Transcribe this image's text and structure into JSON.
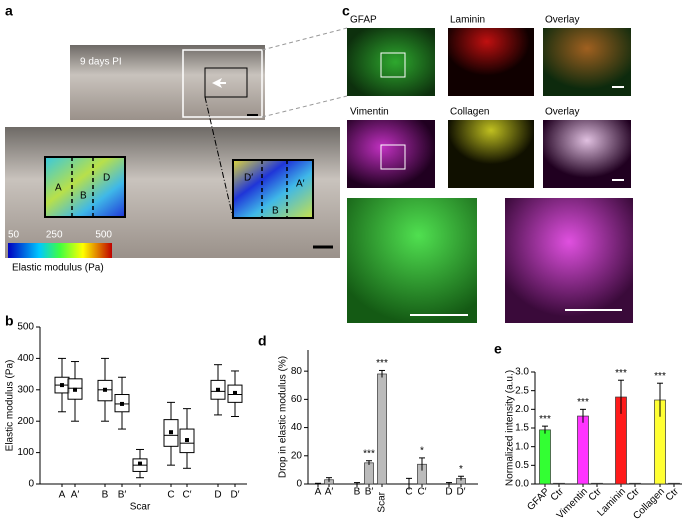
{
  "panel_labels": [
    "a",
    "b",
    "c",
    "d",
    "e"
  ],
  "panel_a": {
    "inset_label": "9 days PI",
    "region_labels": [
      "A",
      "B",
      "D",
      "D′",
      "B",
      "A′"
    ],
    "colorbar": {
      "clim": [
        50,
        500
      ],
      "ticks": [
        50,
        250,
        500
      ],
      "label": "Elastic modulus (Pa)"
    }
  },
  "panel_c": {
    "labels": [
      "GFAP",
      "Laminin",
      "Overlay",
      "Vimentin",
      "Collagen",
      "Overlay"
    ]
  },
  "chart_data": [
    {
      "type": "box",
      "y_label": "Elastic modulus (Pa)",
      "categories": [
        "A",
        "A′",
        "B",
        "B′",
        "Scar",
        "C",
        "C′",
        "D",
        "D′"
      ],
      "whisker_low": [
        230,
        200,
        200,
        175,
        20,
        60,
        50,
        220,
        215
      ],
      "q1": [
        290,
        270,
        265,
        230,
        40,
        120,
        100,
        270,
        260
      ],
      "median": [
        315,
        305,
        300,
        255,
        60,
        155,
        130,
        295,
        285
      ],
      "q3": [
        340,
        335,
        330,
        285,
        80,
        205,
        175,
        330,
        315
      ],
      "whisker_high": [
        400,
        390,
        400,
        340,
        110,
        260,
        240,
        380,
        360
      ],
      "mean": [
        315,
        300,
        300,
        255,
        65,
        165,
        140,
        300,
        290
      ],
      "ylim": [
        0,
        500
      ],
      "yticks": [
        0,
        100,
        200,
        300,
        400,
        500
      ]
    },
    {
      "type": "bar",
      "y_label": "Drop in elastic modulus (%)",
      "categories": [
        "A",
        "A′",
        "B",
        "B′",
        "Scar",
        "C",
        "C′",
        "D",
        "D′"
      ],
      "values": [
        0,
        3,
        0,
        15,
        78,
        0,
        14,
        0,
        4
      ],
      "errors": [
        0.5,
        1.5,
        1,
        1.5,
        2.5,
        4,
        4.5,
        1,
        1.5
      ],
      "significance": [
        null,
        null,
        null,
        "***",
        "***",
        null,
        "*",
        null,
        "*"
      ],
      "color": "#bbbbbb",
      "ylim": [
        0,
        95
      ],
      "yticks": [
        0,
        20,
        40,
        60,
        80
      ]
    },
    {
      "type": "bar",
      "y_label": "Normalized intensity (a.u.)",
      "categories": [
        "GFAP",
        "Ctr",
        "Vimentin",
        "Ctr",
        "Laminin",
        "Ctr",
        "Collagen",
        "Ctr"
      ],
      "values": [
        1.45,
        0.02,
        1.82,
        0.02,
        2.33,
        0.02,
        2.25,
        0.02
      ],
      "errors": [
        0.1,
        0,
        0.18,
        0,
        0.45,
        0,
        0.45,
        0
      ],
      "significance": [
        "***",
        null,
        "***",
        null,
        "***",
        null,
        "***",
        null
      ],
      "colors": [
        "#33ff33",
        "#cccccc",
        "#ff33ff",
        "#cccccc",
        "#ff1a1a",
        "#cccccc",
        "#ffff33",
        "#cccccc"
      ],
      "ylim": [
        0,
        3.0
      ],
      "yticks": [
        {
          "value": 0,
          "label": "0.0"
        },
        {
          "value": 0.5,
          "label": "0.5"
        },
        {
          "value": 1,
          "label": "1.0"
        },
        {
          "value": 1.5,
          "label": "1.5"
        },
        {
          "value": 2,
          "label": "2.0"
        },
        {
          "value": 2.5,
          "label": "2.5"
        },
        {
          "value": 3,
          "label": "3.0"
        }
      ]
    }
  ]
}
